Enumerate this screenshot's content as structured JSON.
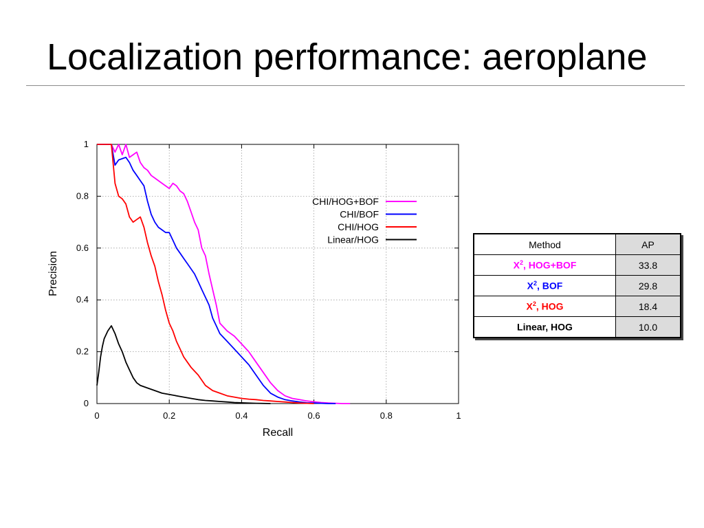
{
  "slide": {
    "title": "Localization performance: aeroplane"
  },
  "chart_data": {
    "type": "line",
    "xlabel": "Recall",
    "ylabel": "Precision",
    "xlim": [
      0,
      1
    ],
    "ylim": [
      0,
      1
    ],
    "xticks": [
      "0",
      "0.2",
      "0.4",
      "0.6",
      "0.8",
      "1"
    ],
    "yticks": [
      "0",
      "0.2",
      "0.4",
      "0.6",
      "0.8",
      "1"
    ],
    "grid": true,
    "legend_position": "top-right",
    "series": [
      {
        "name": "CHI/HOG+BOF",
        "color": "#ff00ff",
        "x": [
          0,
          0.02,
          0.04,
          0.05,
          0.06,
          0.07,
          0.08,
          0.09,
          0.1,
          0.11,
          0.12,
          0.13,
          0.14,
          0.15,
          0.16,
          0.18,
          0.2,
          0.21,
          0.22,
          0.23,
          0.24,
          0.25,
          0.26,
          0.27,
          0.28,
          0.29,
          0.3,
          0.31,
          0.32,
          0.33,
          0.34,
          0.36,
          0.38,
          0.4,
          0.42,
          0.44,
          0.46,
          0.48,
          0.5,
          0.52,
          0.54,
          0.56,
          0.58,
          0.6,
          0.62,
          0.64,
          0.66,
          0.68,
          0.7
        ],
        "y": [
          1.0,
          1.0,
          1.0,
          0.97,
          1.0,
          0.96,
          1.0,
          0.95,
          0.96,
          0.97,
          0.93,
          0.91,
          0.9,
          0.88,
          0.87,
          0.85,
          0.83,
          0.85,
          0.84,
          0.82,
          0.81,
          0.78,
          0.74,
          0.7,
          0.67,
          0.6,
          0.57,
          0.5,
          0.44,
          0.38,
          0.31,
          0.28,
          0.26,
          0.23,
          0.2,
          0.16,
          0.12,
          0.08,
          0.05,
          0.03,
          0.02,
          0.015,
          0.01,
          0.007,
          0.004,
          0.002,
          0.001,
          0.0,
          0.0
        ]
      },
      {
        "name": "CHI/BOF",
        "color": "#0000ff",
        "x": [
          0,
          0.02,
          0.03,
          0.04,
          0.05,
          0.06,
          0.08,
          0.09,
          0.1,
          0.11,
          0.12,
          0.13,
          0.14,
          0.15,
          0.16,
          0.17,
          0.18,
          0.19,
          0.2,
          0.21,
          0.22,
          0.23,
          0.24,
          0.25,
          0.26,
          0.27,
          0.28,
          0.29,
          0.3,
          0.31,
          0.32,
          0.33,
          0.34,
          0.36,
          0.38,
          0.4,
          0.42,
          0.44,
          0.46,
          0.48,
          0.5,
          0.52,
          0.54,
          0.56,
          0.58,
          0.6,
          0.62,
          0.64,
          0.66
        ],
        "y": [
          1.0,
          1.0,
          1.0,
          1.0,
          0.92,
          0.94,
          0.95,
          0.93,
          0.9,
          0.88,
          0.86,
          0.84,
          0.78,
          0.73,
          0.7,
          0.68,
          0.67,
          0.66,
          0.66,
          0.63,
          0.6,
          0.58,
          0.56,
          0.54,
          0.52,
          0.5,
          0.47,
          0.44,
          0.41,
          0.38,
          0.33,
          0.3,
          0.27,
          0.24,
          0.21,
          0.18,
          0.15,
          0.11,
          0.07,
          0.04,
          0.025,
          0.015,
          0.01,
          0.006,
          0.003,
          0.002,
          0.001,
          0.0,
          0.0
        ]
      },
      {
        "name": "CHI/HOG",
        "color": "#ff0000",
        "x": [
          0,
          0.02,
          0.03,
          0.04,
          0.05,
          0.06,
          0.07,
          0.08,
          0.09,
          0.1,
          0.11,
          0.12,
          0.13,
          0.14,
          0.15,
          0.16,
          0.17,
          0.18,
          0.19,
          0.2,
          0.21,
          0.22,
          0.23,
          0.24,
          0.25,
          0.26,
          0.28,
          0.3,
          0.32,
          0.34,
          0.36,
          0.38,
          0.4,
          0.42,
          0.44,
          0.46,
          0.48,
          0.5,
          0.52,
          0.54,
          0.56,
          0.58,
          0.6
        ],
        "y": [
          1.0,
          1.0,
          1.0,
          1.0,
          0.85,
          0.8,
          0.79,
          0.77,
          0.72,
          0.7,
          0.71,
          0.72,
          0.68,
          0.62,
          0.57,
          0.53,
          0.47,
          0.42,
          0.36,
          0.31,
          0.28,
          0.24,
          0.21,
          0.18,
          0.16,
          0.14,
          0.11,
          0.07,
          0.05,
          0.04,
          0.03,
          0.025,
          0.02,
          0.017,
          0.015,
          0.012,
          0.01,
          0.008,
          0.006,
          0.004,
          0.002,
          0.001,
          0.0
        ]
      },
      {
        "name": "Linear/HOG",
        "color": "#000000",
        "x": [
          0,
          0.005,
          0.01,
          0.015,
          0.02,
          0.03,
          0.04,
          0.05,
          0.06,
          0.07,
          0.08,
          0.09,
          0.1,
          0.11,
          0.12,
          0.14,
          0.16,
          0.18,
          0.2,
          0.22,
          0.24,
          0.26,
          0.28,
          0.3,
          0.32,
          0.34,
          0.36,
          0.38,
          0.4,
          0.44,
          0.48
        ],
        "y": [
          0.07,
          0.12,
          0.18,
          0.22,
          0.25,
          0.28,
          0.3,
          0.27,
          0.23,
          0.2,
          0.16,
          0.13,
          0.1,
          0.08,
          0.07,
          0.06,
          0.05,
          0.04,
          0.035,
          0.03,
          0.025,
          0.02,
          0.015,
          0.012,
          0.01,
          0.008,
          0.006,
          0.004,
          0.003,
          0.001,
          0.0
        ]
      }
    ]
  },
  "table": {
    "headers": [
      "Method",
      "AP"
    ],
    "rows": [
      {
        "method_prefix": "X",
        "method_sup": "2",
        "method_suffix": ", HOG+BOF",
        "ap": "33.8",
        "color": "#ff00ff"
      },
      {
        "method_prefix": "X",
        "method_sup": "2",
        "method_suffix": ", BOF",
        "ap": "29.8",
        "color": "#0000ff"
      },
      {
        "method_prefix": "X",
        "method_sup": "2",
        "method_suffix": ", HOG",
        "ap": "18.4",
        "color": "#ff0000"
      },
      {
        "method_prefix": "Linear, HOG",
        "method_sup": "",
        "method_suffix": "",
        "ap": "10.0",
        "color": "#000000"
      }
    ]
  }
}
